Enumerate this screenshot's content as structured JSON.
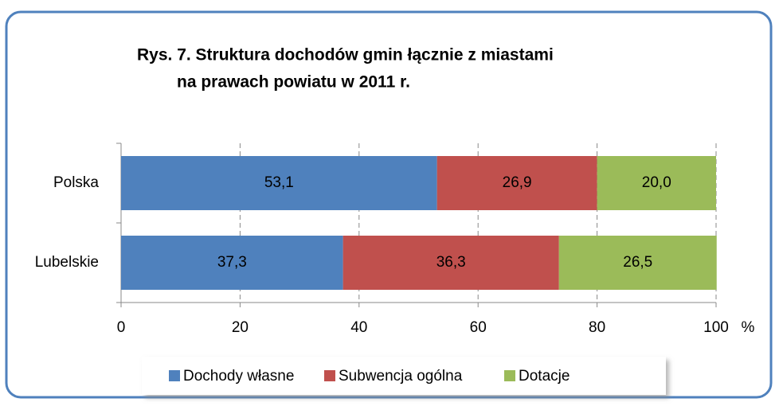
{
  "chart_data": {
    "type": "stacked_barh",
    "title": [
      "Rys. 7. Struktura dochodów gmin łącznie z miastami",
      "na prawach powiatu w 2011 r."
    ],
    "categories": [
      "Polska",
      "Lubelskie"
    ],
    "series": [
      {
        "name": "Dochody własne",
        "color": "#4f81bd",
        "values": [
          53.1,
          37.3
        ],
        "value_labels": [
          "53,1",
          "37,3"
        ]
      },
      {
        "name": "Subwencja ogólna",
        "color": "#c0504d",
        "values": [
          26.9,
          36.3
        ],
        "value_labels": [
          "26,9",
          "36,3"
        ]
      },
      {
        "name": "Dotacje",
        "color": "#9bbb59",
        "values": [
          20.0,
          26.5
        ],
        "value_labels": [
          "20,0",
          "26,5"
        ]
      }
    ],
    "xlim": [
      0,
      100
    ],
    "xticks": [
      0,
      20,
      40,
      60,
      80,
      100
    ],
    "xlabel": "%",
    "grid": true,
    "legend": "bottom"
  }
}
